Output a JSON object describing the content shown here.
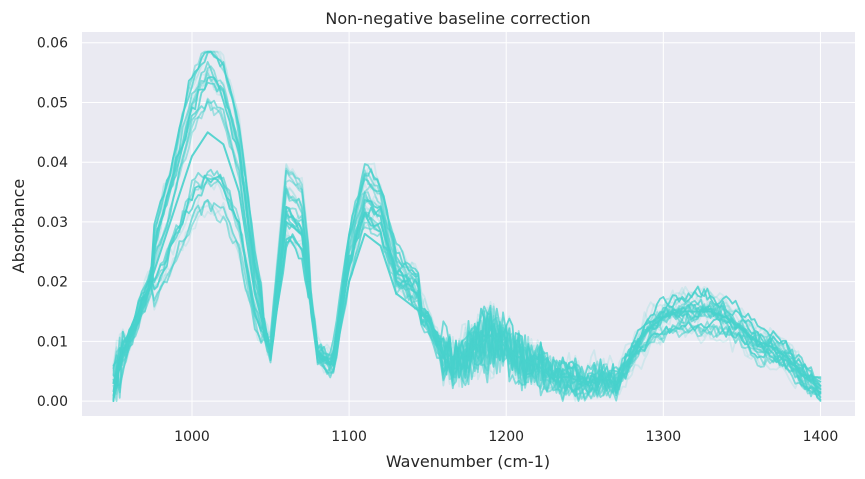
{
  "chart_data": {
    "type": "line",
    "title": "Non-negative baseline correction",
    "xlabel": "Wavenumber (cm-1)",
    "ylabel": "Absorbance",
    "xlim": [
      930,
      1422
    ],
    "ylim": [
      -0.0025,
      0.0618
    ],
    "xticks": [
      1000,
      1100,
      1200,
      1300,
      1400
    ],
    "xtick_labels": [
      "1000",
      "1100",
      "1200",
      "1300",
      "1400"
    ],
    "yticks": [
      0.0,
      0.01,
      0.02,
      0.03,
      0.04,
      0.05,
      0.06
    ],
    "ytick_labels": [
      "0.00",
      "0.01",
      "0.02",
      "0.03",
      "0.04",
      "0.05",
      "0.06"
    ],
    "grid": true,
    "background_color": "#eaeaf2",
    "line_color": "#48d1cc",
    "x_start": 950,
    "x_end": 1400,
    "x_step": 2,
    "representative_series": {
      "x": [
        950,
        960,
        970,
        980,
        990,
        1000,
        1010,
        1020,
        1030,
        1040,
        1050,
        1060,
        1070,
        1080,
        1090,
        1100,
        1110,
        1120,
        1130,
        1140,
        1150,
        1160,
        1170,
        1180,
        1190,
        1200,
        1210,
        1220,
        1230,
        1240,
        1250,
        1260,
        1270,
        1280,
        1290,
        1300,
        1310,
        1320,
        1330,
        1340,
        1350,
        1360,
        1370,
        1380,
        1390,
        1400
      ],
      "y": [
        0.003,
        0.01,
        0.017,
        0.025,
        0.033,
        0.041,
        0.045,
        0.043,
        0.035,
        0.018,
        0.008,
        0.03,
        0.028,
        0.008,
        0.006,
        0.02,
        0.028,
        0.026,
        0.018,
        0.016,
        0.014,
        0.008,
        0.007,
        0.009,
        0.011,
        0.009,
        0.007,
        0.006,
        0.004,
        0.004,
        0.003,
        0.004,
        0.003,
        0.008,
        0.012,
        0.014,
        0.015,
        0.015,
        0.015,
        0.014,
        0.012,
        0.01,
        0.009,
        0.007,
        0.004,
        0.002
      ]
    }
  }
}
